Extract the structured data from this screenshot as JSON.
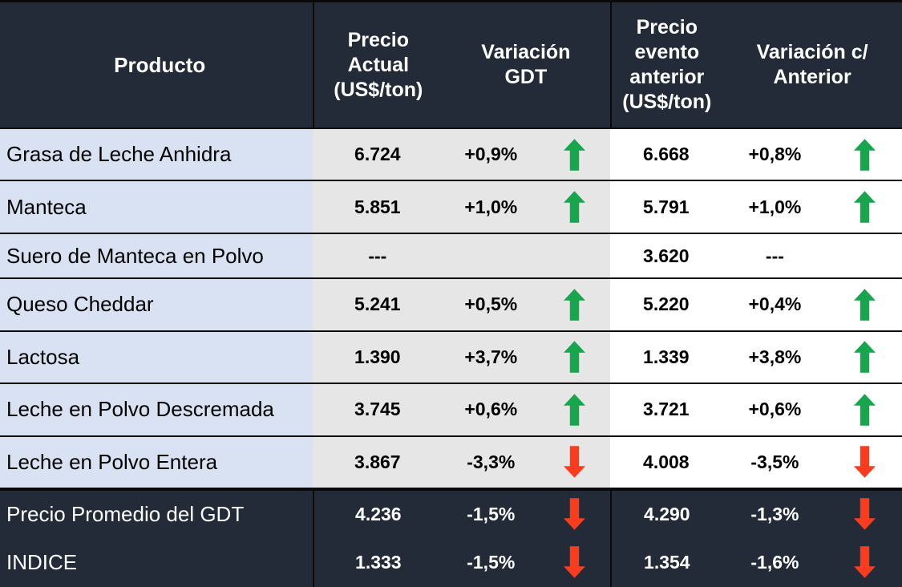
{
  "chart_data": {
    "type": "table",
    "columns": [
      "Producto",
      "Precio Actual (US$/ton)",
      "Variación GDT",
      "Precio evento anterior (US$/ton)",
      "Variación c/ Anterior"
    ],
    "rows": [
      {
        "producto": "Grasa de Leche Anhidra",
        "precio_actual": "6.724",
        "variacion_gdt": "+0,9%",
        "variacion_gdt_dir": "up",
        "precio_evento_anterior": "6.668",
        "variacion_anterior": "+0,8%",
        "variacion_anterior_dir": "up",
        "emphasis": false
      },
      {
        "producto": "Manteca",
        "precio_actual": "5.851",
        "variacion_gdt": "+1,0%",
        "variacion_gdt_dir": "up",
        "precio_evento_anterior": "5.791",
        "variacion_anterior": "+1,0%",
        "variacion_anterior_dir": "up",
        "emphasis": false
      },
      {
        "producto": "Suero de Manteca en Polvo",
        "precio_actual": "---",
        "variacion_gdt": "",
        "variacion_gdt_dir": null,
        "precio_evento_anterior": "3.620",
        "variacion_anterior": "---",
        "variacion_anterior_dir": null,
        "emphasis": false
      },
      {
        "producto": "Queso Cheddar",
        "precio_actual": "5.241",
        "variacion_gdt": "+0,5%",
        "variacion_gdt_dir": "up",
        "precio_evento_anterior": "5.220",
        "variacion_anterior": "+0,4%",
        "variacion_anterior_dir": "up",
        "emphasis": false
      },
      {
        "producto": "Lactosa",
        "precio_actual": "1.390",
        "variacion_gdt": "+3,7%",
        "variacion_gdt_dir": "up",
        "precio_evento_anterior": "1.339",
        "variacion_anterior": "+3,8%",
        "variacion_anterior_dir": "up",
        "emphasis": false
      },
      {
        "producto": "Leche en Polvo Descremada",
        "precio_actual": "3.745",
        "variacion_gdt": "+0,6%",
        "variacion_gdt_dir": "up",
        "precio_evento_anterior": "3.721",
        "variacion_anterior": "+0,6%",
        "variacion_anterior_dir": "up",
        "emphasis": false
      },
      {
        "producto": "Leche en Polvo Entera",
        "precio_actual": "3.867",
        "variacion_gdt": "-3,3%",
        "variacion_gdt_dir": "down",
        "precio_evento_anterior": "4.008",
        "variacion_anterior": "-3,5%",
        "variacion_anterior_dir": "down",
        "emphasis": false
      },
      {
        "producto": "Precio Promedio del GDT",
        "precio_actual": "4.236",
        "variacion_gdt": "-1,5%",
        "variacion_gdt_dir": "down",
        "precio_evento_anterior": "4.290",
        "variacion_anterior": "-1,3%",
        "variacion_anterior_dir": "down",
        "emphasis": true
      },
      {
        "producto": "INDICE",
        "precio_actual": "1.333",
        "variacion_gdt": "-1,5%",
        "variacion_gdt_dir": "down",
        "precio_evento_anterior": "1.354",
        "variacion_anterior": "-1,6%",
        "variacion_anterior_dir": "down",
        "emphasis": true
      }
    ],
    "legend": {
      "up_arrow_meaning": "increase",
      "down_arrow_meaning": "decrease"
    }
  },
  "colors": {
    "header_bg": "#232B38",
    "product_col_bg": "#D9E2F3",
    "gdt_group_bg": "#E7E6E6",
    "anterior_group_bg": "#FFFFFF",
    "up_arrow": "#17A64D",
    "down_arrow": "#FA3C1E",
    "grid_line": "#0A0A0A",
    "header_text": "#FFFFFF",
    "body_text": "#000000"
  }
}
